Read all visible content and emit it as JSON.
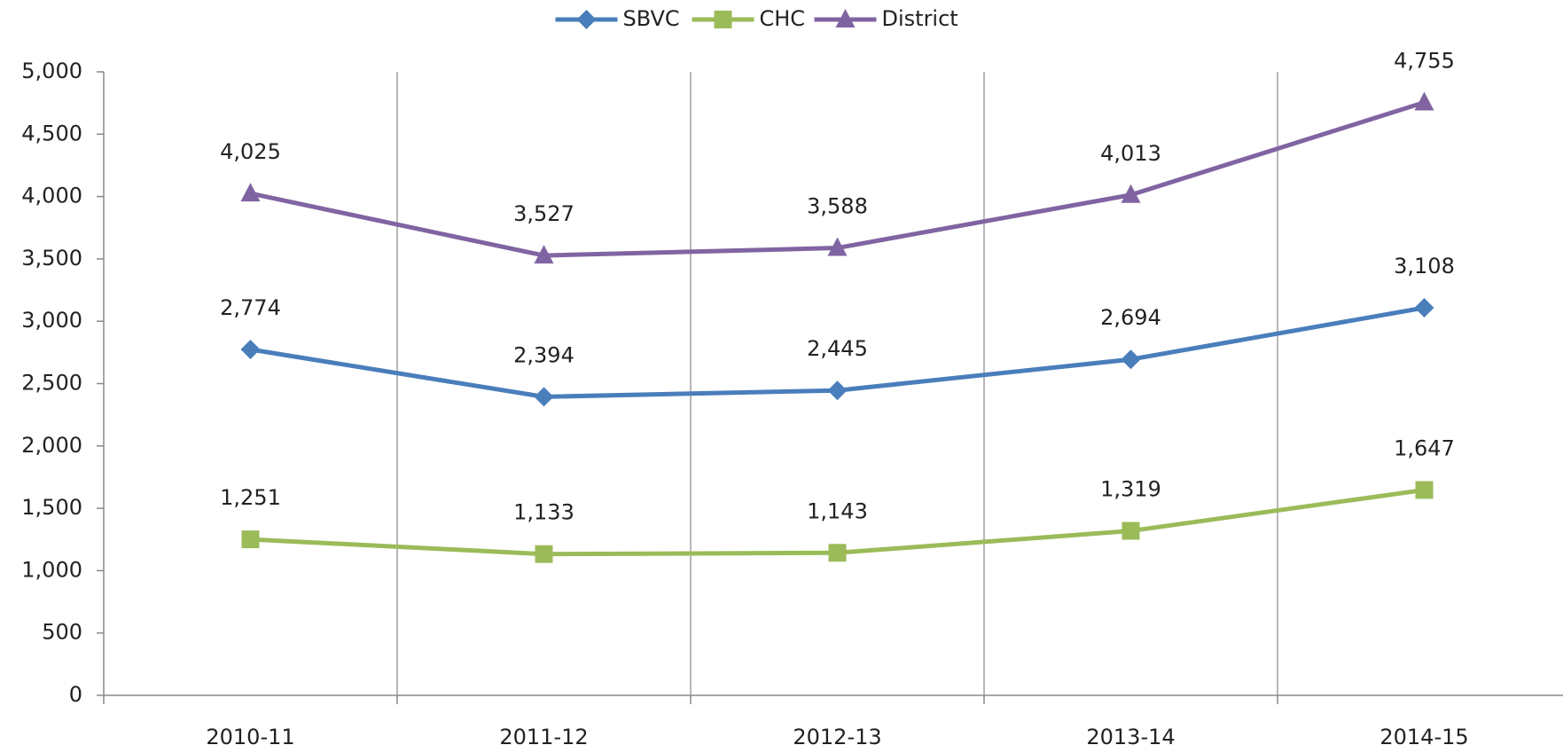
{
  "chart_data": {
    "type": "line",
    "categories": [
      "2010-11",
      "2011-12",
      "2012-13",
      "2013-14",
      "2014-15"
    ],
    "series": [
      {
        "name": "SBVC",
        "color": "#4a7ebb",
        "values": [
          2774,
          2394,
          2445,
          2694,
          3108
        ],
        "value_labels": [
          "2,774",
          "2,394",
          "2,445",
          "2,694",
          "3,108"
        ]
      },
      {
        "name": "CHC",
        "color": "#9bbb59",
        "values": [
          1251,
          1133,
          1143,
          1319,
          1647
        ],
        "value_labels": [
          "1,251",
          "1,133",
          "1,143",
          "1,319",
          "1,647"
        ]
      },
      {
        "name": "District",
        "color": "#8064a2",
        "values": [
          4025,
          3527,
          3588,
          4013,
          4755
        ],
        "value_labels": [
          "4,025",
          "3,527",
          "3,588",
          "4,013",
          "4,755"
        ]
      }
    ],
    "ylim": [
      0,
      5000
    ],
    "yticks": [
      0,
      500,
      {
        "value": 1000,
        "label": "1,000"
      },
      {
        "value": 1500,
        "label": "1,500"
      },
      {
        "value": 2000,
        "label": "2,000"
      },
      {
        "value": 2500,
        "label": "2,500"
      },
      {
        "value": 3000,
        "label": "3,000"
      },
      {
        "value": 3500,
        "label": "3,500"
      },
      {
        "value": 4000,
        "label": "4,000"
      },
      {
        "value": 4500,
        "label": "4,500"
      },
      {
        "value": 5000,
        "label": "5,000"
      }
    ],
    "legend": "top"
  }
}
